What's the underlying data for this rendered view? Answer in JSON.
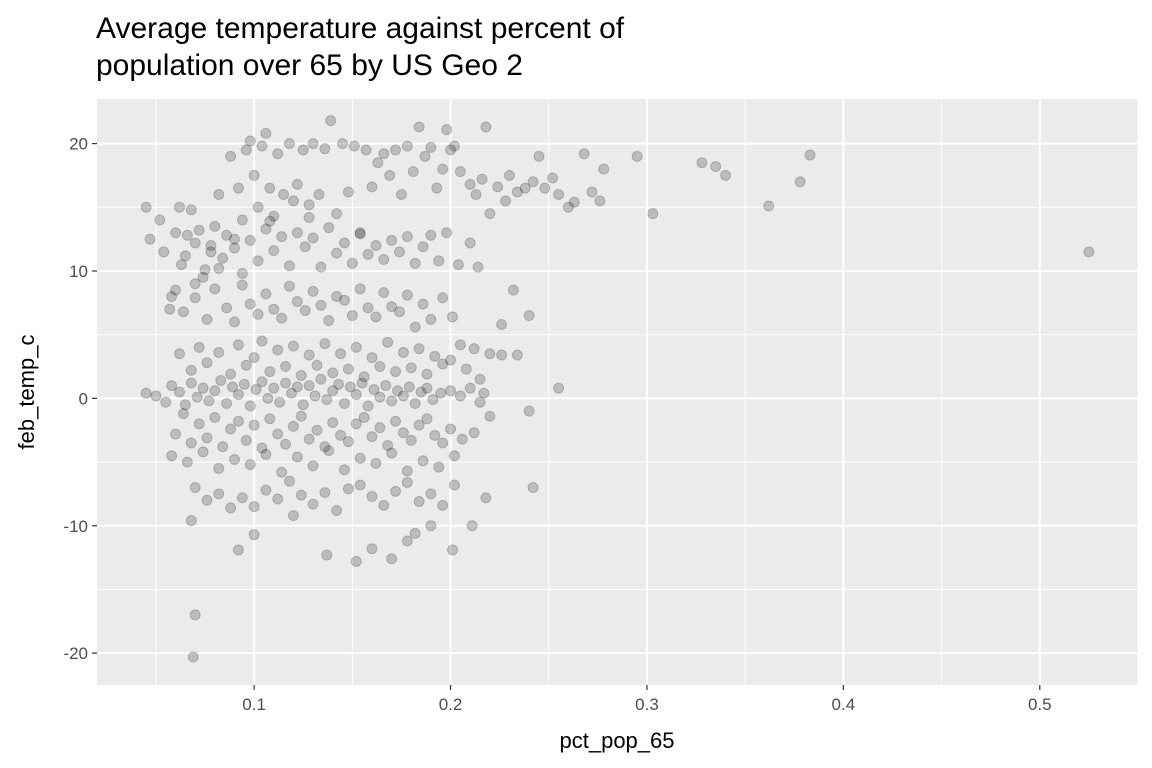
{
  "chart_data": {
    "type": "scatter",
    "title": "Average temperature against percent of\npopulation over 65 by US Geo 2",
    "xlabel": "pct_pop_65",
    "ylabel": "feb_temp_c",
    "xlim": [
      0.02,
      0.55
    ],
    "ylim": [
      -22.5,
      23.5
    ],
    "x_ticks": [
      0.1,
      0.2,
      0.3,
      0.4,
      0.5
    ],
    "x_tick_labels": [
      "0.1",
      "0.2",
      "0.3",
      "0.4",
      "0.5"
    ],
    "y_ticks": [
      -20,
      -10,
      0,
      10,
      20
    ],
    "y_tick_labels": [
      "-20",
      "-10",
      "0",
      "10",
      "20"
    ],
    "grid": true,
    "background": "#ebebeb",
    "grid_color": "#ffffff",
    "point_color": "#000000",
    "point_opacity": 0.2,
    "points": [
      [
        0.045,
        15.0
      ],
      [
        0.047,
        12.5
      ],
      [
        0.052,
        14.0
      ],
      [
        0.054,
        11.5
      ],
      [
        0.057,
        7.0
      ],
      [
        0.06,
        8.5
      ],
      [
        0.062,
        15.0
      ],
      [
        0.063,
        10.5
      ],
      [
        0.066,
        12.8
      ],
      [
        0.068,
        14.8
      ],
      [
        0.07,
        9.0
      ],
      [
        0.072,
        13.2
      ],
      [
        0.075,
        10.1
      ],
      [
        0.078,
        12.0
      ],
      [
        0.08,
        13.5
      ],
      [
        0.082,
        16.0
      ],
      [
        0.084,
        11.0
      ],
      [
        0.088,
        19.0
      ],
      [
        0.09,
        12.5
      ],
      [
        0.092,
        16.5
      ],
      [
        0.094,
        14.0
      ],
      [
        0.096,
        19.5
      ],
      [
        0.098,
        20.2
      ],
      [
        0.1,
        17.5
      ],
      [
        0.102,
        15.0
      ],
      [
        0.104,
        19.8
      ],
      [
        0.106,
        20.8
      ],
      [
        0.108,
        16.5
      ],
      [
        0.11,
        14.3
      ],
      [
        0.112,
        19.2
      ],
      [
        0.115,
        16.0
      ],
      [
        0.118,
        20.0
      ],
      [
        0.12,
        15.5
      ],
      [
        0.122,
        16.8
      ],
      [
        0.125,
        19.5
      ],
      [
        0.128,
        15.2
      ],
      [
        0.13,
        20.0
      ],
      [
        0.133,
        16.0
      ],
      [
        0.136,
        19.6
      ],
      [
        0.139,
        21.8
      ],
      [
        0.142,
        14.5
      ],
      [
        0.145,
        20.0
      ],
      [
        0.148,
        16.2
      ],
      [
        0.151,
        19.8
      ],
      [
        0.154,
        13.0
      ],
      [
        0.157,
        19.5
      ],
      [
        0.16,
        16.6
      ],
      [
        0.163,
        18.5
      ],
      [
        0.166,
        19.2
      ],
      [
        0.169,
        17.5
      ],
      [
        0.172,
        19.5
      ],
      [
        0.175,
        16.0
      ],
      [
        0.178,
        19.8
      ],
      [
        0.181,
        17.8
      ],
      [
        0.184,
        21.3
      ],
      [
        0.187,
        19.0
      ],
      [
        0.19,
        19.7
      ],
      [
        0.193,
        16.5
      ],
      [
        0.196,
        18.0
      ],
      [
        0.198,
        21.1
      ],
      [
        0.2,
        19.5
      ],
      [
        0.202,
        19.8
      ],
      [
        0.205,
        17.8
      ],
      [
        0.21,
        16.8
      ],
      [
        0.213,
        16.0
      ],
      [
        0.216,
        17.2
      ],
      [
        0.218,
        21.3
      ],
      [
        0.22,
        14.5
      ],
      [
        0.224,
        16.6
      ],
      [
        0.228,
        15.5
      ],
      [
        0.23,
        17.5
      ],
      [
        0.234,
        16.2
      ],
      [
        0.238,
        16.5
      ],
      [
        0.242,
        17.0
      ],
      [
        0.245,
        19.0
      ],
      [
        0.248,
        16.5
      ],
      [
        0.252,
        17.3
      ],
      [
        0.255,
        16.0
      ],
      [
        0.26,
        15.0
      ],
      [
        0.263,
        15.4
      ],
      [
        0.268,
        19.2
      ],
      [
        0.272,
        16.2
      ],
      [
        0.276,
        15.5
      ],
      [
        0.278,
        18.0
      ],
      [
        0.295,
        19.0
      ],
      [
        0.303,
        14.5
      ],
      [
        0.328,
        18.5
      ],
      [
        0.335,
        18.2
      ],
      [
        0.34,
        17.5
      ],
      [
        0.362,
        15.1
      ],
      [
        0.378,
        17.0
      ],
      [
        0.383,
        19.1
      ],
      [
        0.525,
        11.5
      ],
      [
        0.06,
        13.0
      ],
      [
        0.065,
        11.2
      ],
      [
        0.07,
        12.2
      ],
      [
        0.074,
        9.5
      ],
      [
        0.078,
        11.5
      ],
      [
        0.082,
        10.2
      ],
      [
        0.086,
        12.8
      ],
      [
        0.09,
        11.8
      ],
      [
        0.094,
        9.8
      ],
      [
        0.098,
        12.4
      ],
      [
        0.102,
        10.8
      ],
      [
        0.106,
        13.3
      ],
      [
        0.11,
        11.6
      ],
      [
        0.114,
        12.7
      ],
      [
        0.118,
        10.4
      ],
      [
        0.122,
        13.0
      ],
      [
        0.126,
        11.9
      ],
      [
        0.13,
        12.6
      ],
      [
        0.134,
        10.3
      ],
      [
        0.138,
        13.4
      ],
      [
        0.142,
        11.4
      ],
      [
        0.146,
        12.2
      ],
      [
        0.15,
        10.6
      ],
      [
        0.154,
        12.9
      ],
      [
        0.158,
        11.3
      ],
      [
        0.162,
        12.0
      ],
      [
        0.166,
        10.9
      ],
      [
        0.17,
        12.4
      ],
      [
        0.174,
        11.5
      ],
      [
        0.178,
        12.7
      ],
      [
        0.182,
        10.6
      ],
      [
        0.186,
        11.9
      ],
      [
        0.19,
        12.8
      ],
      [
        0.194,
        10.8
      ],
      [
        0.198,
        13.0
      ],
      [
        0.204,
        10.5
      ],
      [
        0.21,
        12.2
      ],
      [
        0.214,
        10.3
      ],
      [
        0.108,
        13.9
      ],
      [
        0.128,
        14.2
      ],
      [
        0.058,
        8.0
      ],
      [
        0.064,
        6.8
      ],
      [
        0.07,
        7.9
      ],
      [
        0.076,
        6.2
      ],
      [
        0.08,
        8.6
      ],
      [
        0.086,
        7.1
      ],
      [
        0.09,
        6.0
      ],
      [
        0.094,
        8.9
      ],
      [
        0.098,
        7.4
      ],
      [
        0.102,
        6.6
      ],
      [
        0.106,
        8.2
      ],
      [
        0.11,
        7.0
      ],
      [
        0.114,
        6.3
      ],
      [
        0.118,
        8.8
      ],
      [
        0.122,
        7.6
      ],
      [
        0.126,
        6.9
      ],
      [
        0.13,
        8.4
      ],
      [
        0.134,
        7.3
      ],
      [
        0.138,
        6.1
      ],
      [
        0.142,
        8.0
      ],
      [
        0.146,
        7.7
      ],
      [
        0.15,
        6.5
      ],
      [
        0.154,
        8.6
      ],
      [
        0.158,
        7.1
      ],
      [
        0.162,
        6.4
      ],
      [
        0.166,
        8.3
      ],
      [
        0.17,
        7.2
      ],
      [
        0.174,
        6.8
      ],
      [
        0.178,
        8.1
      ],
      [
        0.182,
        5.6
      ],
      [
        0.186,
        7.4
      ],
      [
        0.19,
        6.2
      ],
      [
        0.196,
        7.9
      ],
      [
        0.201,
        6.4
      ],
      [
        0.226,
        5.8
      ],
      [
        0.232,
        8.5
      ],
      [
        0.24,
        6.5
      ],
      [
        0.205,
        4.2
      ],
      [
        0.212,
        3.9
      ],
      [
        0.22,
        3.5
      ],
      [
        0.062,
        3.5
      ],
      [
        0.068,
        2.2
      ],
      [
        0.072,
        4.0
      ],
      [
        0.076,
        2.8
      ],
      [
        0.082,
        3.6
      ],
      [
        0.088,
        1.9
      ],
      [
        0.092,
        4.2
      ],
      [
        0.096,
        2.6
      ],
      [
        0.1,
        3.2
      ],
      [
        0.104,
        4.5
      ],
      [
        0.108,
        2.1
      ],
      [
        0.112,
        3.8
      ],
      [
        0.116,
        2.5
      ],
      [
        0.12,
        4.1
      ],
      [
        0.124,
        1.8
      ],
      [
        0.128,
        3.4
      ],
      [
        0.132,
        2.6
      ],
      [
        0.136,
        4.3
      ],
      [
        0.14,
        2.0
      ],
      [
        0.144,
        3.5
      ],
      [
        0.148,
        2.3
      ],
      [
        0.152,
        4.0
      ],
      [
        0.156,
        1.7
      ],
      [
        0.16,
        3.2
      ],
      [
        0.164,
        2.5
      ],
      [
        0.168,
        4.4
      ],
      [
        0.172,
        2.1
      ],
      [
        0.176,
        3.6
      ],
      [
        0.18,
        2.4
      ],
      [
        0.184,
        3.9
      ],
      [
        0.188,
        1.9
      ],
      [
        0.192,
        3.3
      ],
      [
        0.196,
        2.7
      ],
      [
        0.2,
        3.0
      ],
      [
        0.208,
        2.3
      ],
      [
        0.215,
        1.5
      ],
      [
        0.226,
        3.4
      ],
      [
        0.234,
        3.4
      ],
      [
        0.217,
        0.4
      ],
      [
        0.255,
        0.8
      ],
      [
        0.045,
        0.4
      ],
      [
        0.05,
        0.2
      ],
      [
        0.055,
        -0.3
      ],
      [
        0.058,
        1.0
      ],
      [
        0.062,
        0.5
      ],
      [
        0.065,
        -0.5
      ],
      [
        0.068,
        1.2
      ],
      [
        0.071,
        0.1
      ],
      [
        0.074,
        0.8
      ],
      [
        0.077,
        -0.2
      ],
      [
        0.08,
        0.6
      ],
      [
        0.083,
        1.4
      ],
      [
        0.086,
        -0.4
      ],
      [
        0.089,
        0.9
      ],
      [
        0.092,
        0.3
      ],
      [
        0.095,
        1.1
      ],
      [
        0.098,
        -0.6
      ],
      [
        0.101,
        0.7
      ],
      [
        0.104,
        1.3
      ],
      [
        0.107,
        0.0
      ],
      [
        0.11,
        0.8
      ],
      [
        0.113,
        -0.3
      ],
      [
        0.116,
        1.2
      ],
      [
        0.119,
        0.4
      ],
      [
        0.122,
        0.9
      ],
      [
        0.125,
        -0.5
      ],
      [
        0.128,
        1.0
      ],
      [
        0.131,
        0.2
      ],
      [
        0.134,
        1.5
      ],
      [
        0.137,
        -0.1
      ],
      [
        0.14,
        0.6
      ],
      [
        0.143,
        1.1
      ],
      [
        0.146,
        -0.4
      ],
      [
        0.149,
        0.9
      ],
      [
        0.152,
        0.3
      ],
      [
        0.155,
        1.2
      ],
      [
        0.158,
        -0.6
      ],
      [
        0.161,
        0.7
      ],
      [
        0.164,
        0.1
      ],
      [
        0.167,
        1.0
      ],
      [
        0.17,
        -0.2
      ],
      [
        0.173,
        0.6
      ],
      [
        0.176,
        0.2
      ],
      [
        0.179,
        0.9
      ],
      [
        0.182,
        -0.4
      ],
      [
        0.185,
        0.5
      ],
      [
        0.188,
        0.8
      ],
      [
        0.191,
        -0.1
      ],
      [
        0.195,
        0.4
      ],
      [
        0.2,
        0.6
      ],
      [
        0.205,
        0.2
      ],
      [
        0.21,
        0.8
      ],
      [
        0.215,
        -0.3
      ],
      [
        0.06,
        -2.8
      ],
      [
        0.064,
        -1.2
      ],
      [
        0.068,
        -3.5
      ],
      [
        0.072,
        -2.0
      ],
      [
        0.076,
        -3.1
      ],
      [
        0.08,
        -1.5
      ],
      [
        0.084,
        -3.8
      ],
      [
        0.088,
        -2.4
      ],
      [
        0.092,
        -1.8
      ],
      [
        0.096,
        -3.3
      ],
      [
        0.1,
        -2.1
      ],
      [
        0.104,
        -3.9
      ],
      [
        0.108,
        -1.6
      ],
      [
        0.112,
        -2.8
      ],
      [
        0.116,
        -3.6
      ],
      [
        0.12,
        -2.2
      ],
      [
        0.124,
        -1.4
      ],
      [
        0.128,
        -3.2
      ],
      [
        0.132,
        -2.5
      ],
      [
        0.136,
        -3.8
      ],
      [
        0.14,
        -1.9
      ],
      [
        0.144,
        -2.9
      ],
      [
        0.148,
        -3.4
      ],
      [
        0.152,
        -2.0
      ],
      [
        0.156,
        -1.5
      ],
      [
        0.16,
        -3.0
      ],
      [
        0.164,
        -2.3
      ],
      [
        0.168,
        -3.7
      ],
      [
        0.172,
        -1.8
      ],
      [
        0.176,
        -2.7
      ],
      [
        0.18,
        -3.3
      ],
      [
        0.184,
        -2.1
      ],
      [
        0.188,
        -1.6
      ],
      [
        0.192,
        -2.9
      ],
      [
        0.196,
        -3.5
      ],
      [
        0.2,
        -2.4
      ],
      [
        0.206,
        -3.2
      ],
      [
        0.212,
        -2.7
      ],
      [
        0.22,
        -1.4
      ],
      [
        0.24,
        -1.0
      ],
      [
        0.058,
        -4.5
      ],
      [
        0.066,
        -5.0
      ],
      [
        0.074,
        -4.2
      ],
      [
        0.082,
        -5.5
      ],
      [
        0.09,
        -4.8
      ],
      [
        0.098,
        -5.2
      ],
      [
        0.106,
        -4.4
      ],
      [
        0.114,
        -5.8
      ],
      [
        0.122,
        -4.6
      ],
      [
        0.13,
        -5.3
      ],
      [
        0.138,
        -4.1
      ],
      [
        0.146,
        -5.6
      ],
      [
        0.154,
        -4.7
      ],
      [
        0.162,
        -5.1
      ],
      [
        0.17,
        -4.3
      ],
      [
        0.178,
        -5.7
      ],
      [
        0.186,
        -4.9
      ],
      [
        0.194,
        -5.4
      ],
      [
        0.202,
        -4.5
      ],
      [
        0.07,
        -7.0
      ],
      [
        0.076,
        -8.0
      ],
      [
        0.082,
        -7.5
      ],
      [
        0.088,
        -8.6
      ],
      [
        0.094,
        -7.8
      ],
      [
        0.1,
        -8.5
      ],
      [
        0.106,
        -7.2
      ],
      [
        0.112,
        -7.9
      ],
      [
        0.118,
        -6.5
      ],
      [
        0.124,
        -7.6
      ],
      [
        0.13,
        -8.3
      ],
      [
        0.136,
        -7.4
      ],
      [
        0.142,
        -8.8
      ],
      [
        0.148,
        -7.1
      ],
      [
        0.154,
        -6.8
      ],
      [
        0.16,
        -7.7
      ],
      [
        0.166,
        -8.4
      ],
      [
        0.172,
        -7.3
      ],
      [
        0.178,
        -6.6
      ],
      [
        0.184,
        -8.1
      ],
      [
        0.19,
        -7.5
      ],
      [
        0.196,
        -8.4
      ],
      [
        0.202,
        -6.8
      ],
      [
        0.218,
        -7.8
      ],
      [
        0.242,
        -7.0
      ],
      [
        0.068,
        -9.6
      ],
      [
        0.092,
        -11.9
      ],
      [
        0.1,
        -10.7
      ],
      [
        0.12,
        -9.2
      ],
      [
        0.137,
        -12.3
      ],
      [
        0.152,
        -12.8
      ],
      [
        0.16,
        -11.8
      ],
      [
        0.17,
        -12.6
      ],
      [
        0.178,
        -11.2
      ],
      [
        0.19,
        -10.0
      ],
      [
        0.201,
        -11.9
      ],
      [
        0.211,
        -10.0
      ],
      [
        0.182,
        -10.6
      ],
      [
        0.07,
        -17.0
      ],
      [
        0.069,
        -20.3
      ]
    ]
  }
}
